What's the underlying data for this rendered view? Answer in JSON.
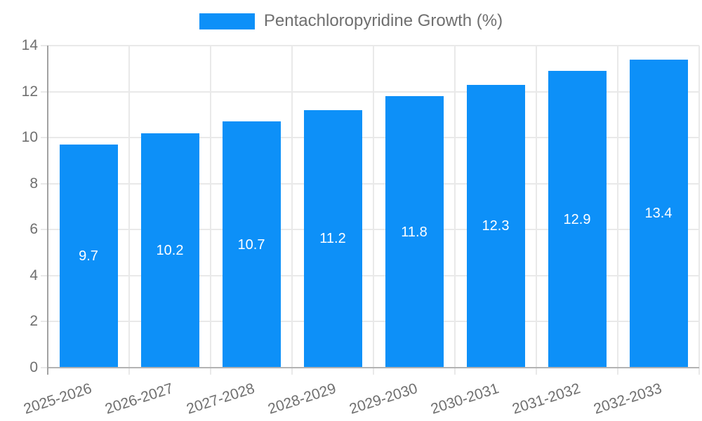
{
  "colors": {
    "background": "#ffffff",
    "bar": "#0d90f8",
    "grid_line": "#e9e9e9",
    "axis_line_y": "#a2a2a2",
    "axis_line_x": "#b3b3b3",
    "tick_label_text": "#6f6f6f",
    "legend_text": "#6f6f6f",
    "value_label_text": "#ffffff"
  },
  "chart_data": {
    "type": "bar",
    "title": "",
    "legend": "Pentachloropyridine Growth (%)",
    "legend_position": "top-center",
    "categories": [
      "2025-2026",
      "2026-2027",
      "2027-2028",
      "2028-2029",
      "2029-2030",
      "2030-2031",
      "2031-2032",
      "2032-2033"
    ],
    "values": [
      9.7,
      10.2,
      10.7,
      11.2,
      11.8,
      12.3,
      12.9,
      13.4
    ],
    "value_label_position": "inside-center",
    "value_label_decimals": 1,
    "xlabel": "",
    "ylabel": "",
    "ylim": [
      0,
      14
    ],
    "yticks": [
      0,
      2,
      4,
      6,
      8,
      10,
      12,
      14
    ],
    "grid": true,
    "x_tick_rotation_deg": -18
  }
}
